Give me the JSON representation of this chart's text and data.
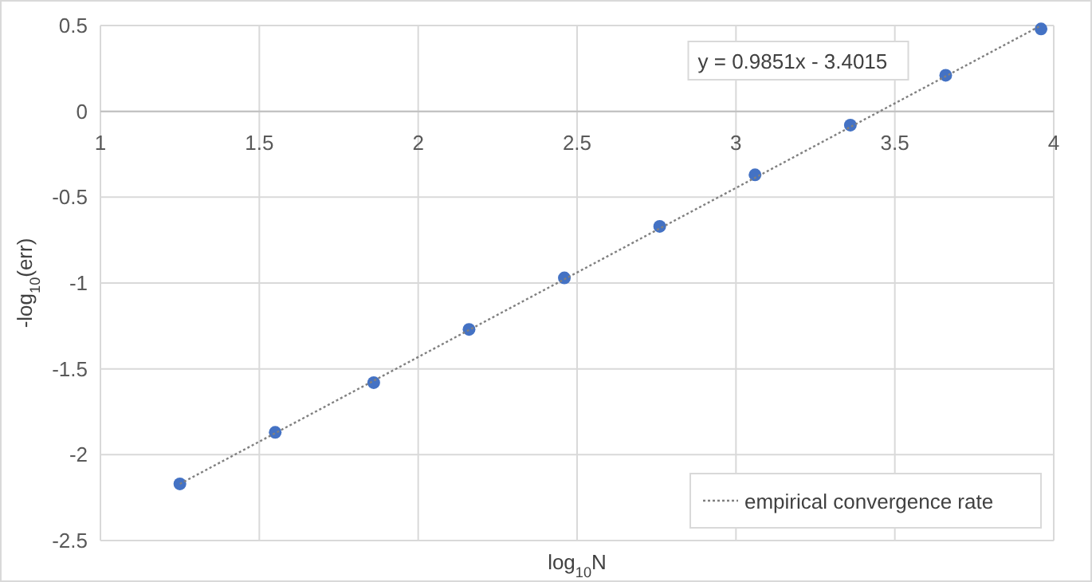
{
  "chart_data": {
    "type": "scatter",
    "xlabel": "log$_{10}$N",
    "ylabel": "-log$_{10}$(err)",
    "xlim": [
      1,
      4
    ],
    "xticks": [
      1,
      1.5,
      2,
      2.5,
      3,
      3.5,
      4
    ],
    "ylim": [
      -2.5,
      0.5
    ],
    "yticks": [
      -2.5,
      -2,
      -1.5,
      -1,
      -0.5,
      0,
      0.5
    ],
    "grid": true,
    "legend": "bottom right",
    "marker": "circle",
    "annotations": [
      "y = 0.9851x - 3.4015"
    ],
    "series": [
      {
        "color": "#4472c4",
        "x": [
          1.25,
          1.55,
          1.86,
          2.16,
          2.46,
          2.76,
          3.06,
          3.36,
          3.66,
          3.96
        ],
        "values": [
          -2.17,
          -1.87,
          -1.58,
          -1.27,
          -0.97,
          -0.67,
          -0.37,
          -0.08,
          0.21,
          0.48
        ]
      },
      {
        "type": "line",
        "name": "empirical convergence rate",
        "color": "#808080",
        "line_style": "dotted",
        "marker": "none",
        "x": [
          1.25,
          3.96
        ],
        "values": [
          -2.17,
          0.5
        ]
      }
    ]
  }
}
